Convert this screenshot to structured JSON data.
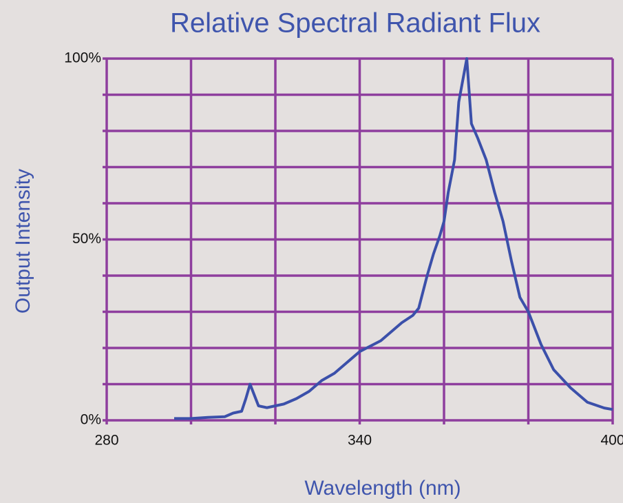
{
  "chart_data": {
    "type": "line",
    "title": "Relative Spectral Radiant Flux",
    "xlabel": "Wavelength (nm)",
    "ylabel": "Output Intensity",
    "xlim": [
      280,
      400
    ],
    "ylim": [
      0,
      100
    ],
    "xticks": [
      280,
      340,
      400
    ],
    "yticks": [
      {
        "value": 0,
        "label": "0%"
      },
      {
        "value": 50,
        "label": "50%"
      },
      {
        "value": 100,
        "label": "100%"
      }
    ],
    "xgrid": [
      280,
      300,
      320,
      340,
      360,
      380,
      400
    ],
    "ygrid": [
      0,
      10,
      20,
      30,
      40,
      50,
      60,
      70,
      80,
      90,
      100
    ],
    "grid": true,
    "grid_color": "#8e3e9e",
    "series": [
      {
        "name": "Relative Spectral Radiant Flux",
        "color": "#3b50aa",
        "x": [
          296,
          300,
          304,
          308,
          310,
          312,
          313,
          314,
          315,
          316,
          318,
          322,
          325,
          328,
          331,
          334,
          337,
          340,
          345,
          350,
          352.6,
          354,
          356,
          357.5,
          359,
          360,
          361,
          362.5,
          363.5,
          365.4,
          366.5,
          368,
          370,
          372,
          374,
          376,
          378,
          380,
          383,
          386,
          390,
          394,
          398,
          400
        ],
        "values": [
          0.5,
          0.5,
          0.8,
          1,
          2,
          2.5,
          6,
          10,
          7,
          4,
          3.5,
          4.5,
          6,
          8,
          11,
          13,
          16,
          19,
          22,
          27,
          29,
          31,
          40,
          46,
          51,
          55,
          63,
          72,
          88,
          100,
          82,
          78,
          72,
          63,
          55,
          44,
          34,
          30,
          21,
          14,
          9,
          5,
          3.4,
          3
        ]
      }
    ]
  }
}
